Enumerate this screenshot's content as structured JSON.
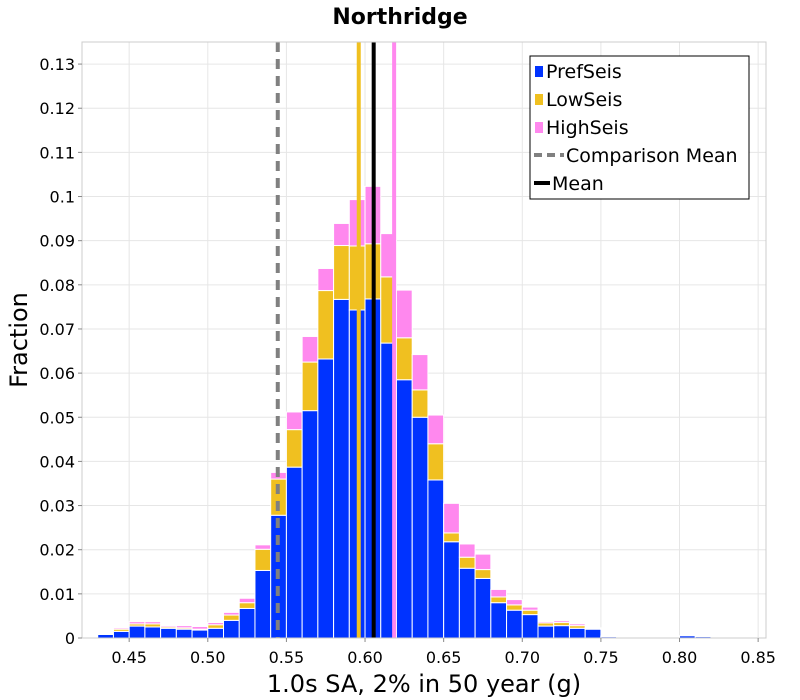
{
  "chart_data": {
    "type": "bar",
    "stacked": true,
    "title": "Northridge",
    "xlabel": "1.0s SA, 2% in 50 year (g)",
    "ylabel": "Fraction",
    "xlim": [
      0.42,
      0.855
    ],
    "ylim": [
      0,
      0.135
    ],
    "bin_width": 0.01,
    "x_ticks": [
      "0.45",
      "0.50",
      "0.55",
      "0.60",
      "0.65",
      "0.70",
      "0.75",
      "0.80",
      "0.85"
    ],
    "y_ticks": [
      "0",
      "0.01",
      "0.02",
      "0.03",
      "0.04",
      "0.05",
      "0.06",
      "0.07",
      "0.08",
      "0.09",
      "0.1",
      "0.11",
      "0.12",
      "0.13"
    ],
    "bin_centers": [
      0.425,
      0.435,
      0.445,
      0.455,
      0.465,
      0.475,
      0.485,
      0.495,
      0.505,
      0.515,
      0.525,
      0.535,
      0.545,
      0.555,
      0.565,
      0.575,
      0.585,
      0.595,
      0.605,
      0.615,
      0.625,
      0.635,
      0.645,
      0.655,
      0.665,
      0.675,
      0.685,
      0.695,
      0.705,
      0.715,
      0.725,
      0.735,
      0.745,
      0.755,
      0.765,
      0.775,
      0.785,
      0.795,
      0.805,
      0.815,
      0.825,
      0.835,
      0.845
    ],
    "series": [
      {
        "name": "PrefSeis",
        "color": "#0033ff",
        "values": [
          0.0001,
          0.0008,
          0.0015,
          0.0027,
          0.0025,
          0.0022,
          0.002,
          0.0018,
          0.0022,
          0.004,
          0.0067,
          0.0153,
          0.0278,
          0.0387,
          0.0515,
          0.0632,
          0.0767,
          0.0743,
          0.0768,
          0.0668,
          0.0585,
          0.05,
          0.0358,
          0.0218,
          0.0158,
          0.0135,
          0.008,
          0.0063,
          0.0053,
          0.0027,
          0.0028,
          0.0022,
          0.002,
          0.0003,
          0.0002,
          0.0001,
          0.0001,
          0.0001,
          0.0005,
          0.0003,
          0.0001,
          0.0001,
          0.0001
        ]
      },
      {
        "name": "LowSeis",
        "color": "#f0c020",
        "values": [
          0.0,
          0.0001,
          0.0005,
          0.0005,
          0.0007,
          0.0003,
          0.0003,
          0.0002,
          0.0008,
          0.0012,
          0.0013,
          0.0048,
          0.0082,
          0.0085,
          0.011,
          0.0155,
          0.0122,
          0.0145,
          0.0125,
          0.015,
          0.0095,
          0.0062,
          0.0082,
          0.002,
          0.0025,
          0.002,
          0.0013,
          0.0012,
          0.001,
          0.0007,
          0.0007,
          0.0006,
          0.0002,
          0.0001,
          0.0,
          0.0,
          0.0,
          0.0,
          0.0,
          0.0,
          0.0,
          0.0,
          0.0
        ]
      },
      {
        "name": "HighSeis",
        "color": "#ff88ee",
        "values": [
          0.0,
          0.0,
          0.0003,
          0.0005,
          0.0005,
          0.0003,
          0.0005,
          0.0006,
          0.0005,
          0.0006,
          0.001,
          0.001,
          0.0015,
          0.004,
          0.0058,
          0.005,
          0.005,
          0.0105,
          0.013,
          0.0098,
          0.0108,
          0.008,
          0.0065,
          0.0067,
          0.003,
          0.0035,
          0.0017,
          0.0012,
          0.0007,
          0.0003,
          0.0004,
          0.0004,
          0.0001,
          0.0001,
          0.0,
          0.0,
          0.0,
          0.0,
          0.0,
          0.0,
          0.0,
          0.0,
          0.0
        ]
      }
    ],
    "vlines": [
      {
        "name": "Comparison Mean",
        "x": 0.5445,
        "color": "#808080",
        "style": "dashed"
      },
      {
        "name": "LowSeis Mean",
        "x": 0.596,
        "color": "#f0c020",
        "style": "solid"
      },
      {
        "name": "HighSeis Mean",
        "x": 0.6185,
        "color": "#ff88ee",
        "style": "solid"
      },
      {
        "name": "Mean",
        "x": 0.6055,
        "color": "#000000",
        "style": "solid"
      }
    ],
    "legend": {
      "placement": "top-right",
      "entries": [
        {
          "label": "PrefSeis",
          "color": "#0033ff",
          "kind": "box"
        },
        {
          "label": "LowSeis",
          "color": "#f0c020",
          "kind": "box"
        },
        {
          "label": "HighSeis",
          "color": "#ff88ee",
          "kind": "box"
        },
        {
          "label": "Comparison Mean",
          "color": "#808080",
          "kind": "dashed"
        },
        {
          "label": "Mean",
          "color": "#000000",
          "kind": "solid"
        }
      ]
    }
  }
}
